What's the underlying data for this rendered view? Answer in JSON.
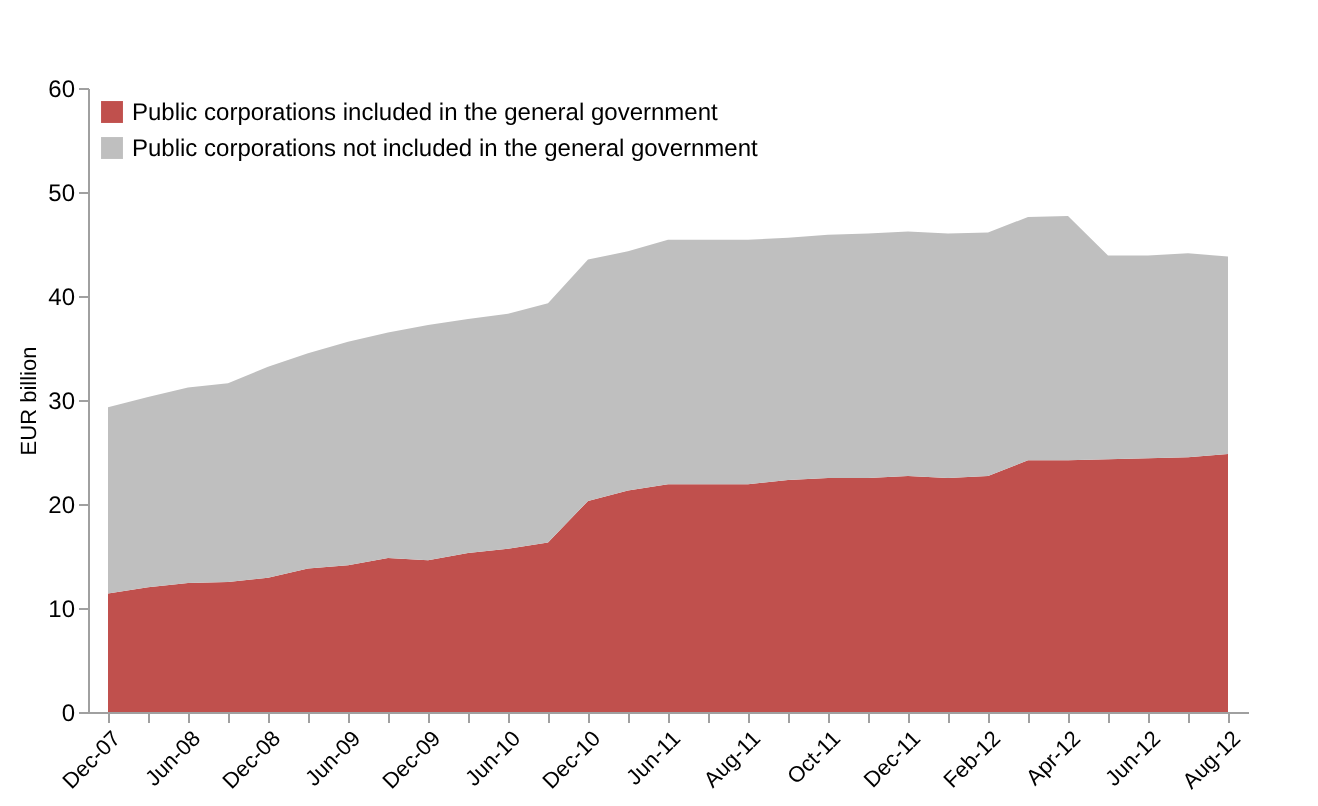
{
  "chart_data": {
    "type": "area",
    "stacked": true,
    "ylabel": "EUR billion",
    "categories": [
      "Dec-07",
      null,
      "Jun-08",
      null,
      "Dec-08",
      null,
      "Jun-09",
      null,
      "Dec-09",
      null,
      "Jun-10",
      null,
      "Dec-10",
      null,
      "Jun-11",
      null,
      "Aug-11",
      null,
      "Oct-11",
      null,
      "Dec-11",
      null,
      "Feb-12",
      null,
      "Apr-12",
      null,
      "Jun-12",
      null,
      "Aug-12"
    ],
    "series": [
      {
        "name": "Public corporations included in the general government",
        "color": "#c0504d",
        "values": [
          11.4,
          12.0,
          12.4,
          12.5,
          12.9,
          13.8,
          14.1,
          14.8,
          14.6,
          15.3,
          15.7,
          16.3,
          20.3,
          21.3,
          21.9,
          21.9,
          21.9,
          22.3,
          22.5,
          22.5,
          22.7,
          22.5,
          22.7,
          24.2,
          24.2,
          24.3,
          24.4,
          24.5,
          24.8
        ]
      },
      {
        "name": "Public corporations not included in the general government",
        "color": "#bfbfbf",
        "values": [
          17.9,
          18.3,
          18.8,
          19.1,
          20.3,
          20.7,
          21.5,
          21.7,
          22.6,
          22.5,
          22.6,
          23.0,
          23.2,
          23.0,
          23.5,
          23.5,
          23.5,
          23.3,
          23.4,
          23.5,
          23.5,
          23.5,
          23.4,
          23.4,
          23.5,
          19.6,
          19.5,
          19.6,
          19.0
        ]
      }
    ],
    "ylim": [
      0,
      60
    ],
    "yticks": [
      0,
      10,
      20,
      30,
      40,
      50,
      60
    ],
    "grid": false,
    "legend": "top left"
  }
}
